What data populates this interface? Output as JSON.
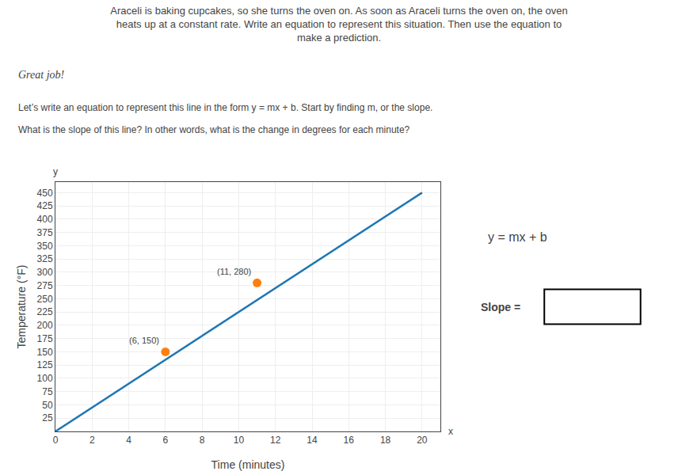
{
  "chart_data": {
    "type": "line",
    "title": "Araceli is baking cupcakes, so she turns the oven on. As soon as Araceli turns the oven on, the oven\nheats up at a constant rate. Write an equation to represent this situation. Then use the equation to\nmake a prediction.",
    "xlabel": "Time (minutes)",
    "ylabel": "Temperature (°F)",
    "series": [
      {
        "type": "line",
        "x": [
          0,
          20
        ],
        "values": [
          0,
          450
        ]
      },
      {
        "type": "scatter",
        "x": [
          6,
          11
        ],
        "values": [
          150,
          280
        ]
      }
    ],
    "xlim": [
      0,
      21
    ],
    "xticks": [
      0,
      2,
      4,
      6,
      8,
      10,
      12,
      14,
      16,
      18,
      20
    ],
    "ylim": [
      0,
      470
    ],
    "yticks": [
      25,
      50,
      75,
      100,
      125,
      150,
      175,
      200,
      225,
      250,
      275,
      300,
      325,
      350,
      375,
      400,
      425,
      450
    ],
    "grid": true,
    "annotations": [
      {
        "text": "Great job!"
      },
      {
        "text": "Let’s write an equation to represent this line in the form y = mx + b. Start by finding m, or the slope."
      },
      {
        "text": "What is the slope of this line? In other words, what is the change in degrees for each minute?"
      },
      {
        "text": "y = mx + b"
      },
      {
        "text": "Slope = "
      },
      {
        "text": "y"
      },
      {
        "text": "x"
      },
      {
        "text": "(6, 150)",
        "x": 6,
        "y": 150
      },
      {
        "text": "(11, 280)",
        "x": 11,
        "y": 280
      }
    ]
  }
}
